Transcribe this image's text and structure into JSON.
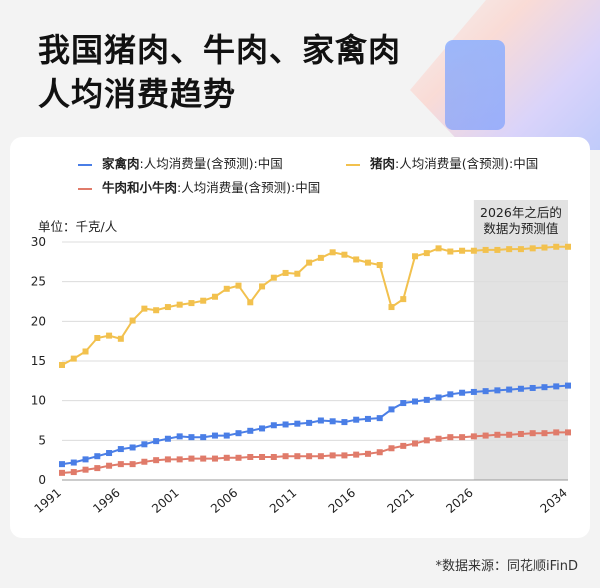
{
  "page": {
    "title_line1": "我国猪肉、牛肉、家禽肉",
    "title_line2": "人均消费趋势",
    "source": "*数据来源：同花顺iFinD"
  },
  "colors": {
    "poultry": "#4a7ee6",
    "pork": "#f2c14e",
    "beef": "#e07b6a",
    "forecast_band": "#e2e2e2"
  },
  "chart_data": {
    "type": "line",
    "unit_label": "单位：千克/人",
    "forecast_note_line1": "2026年之后的",
    "forecast_note_line2": "数据为预测值",
    "forecast_start": 2026,
    "x": [
      1991,
      1992,
      1993,
      1994,
      1995,
      1996,
      1997,
      1998,
      1999,
      2000,
      2001,
      2002,
      2003,
      2004,
      2005,
      2006,
      2007,
      2008,
      2009,
      2010,
      2011,
      2012,
      2013,
      2014,
      2015,
      2016,
      2017,
      2018,
      2019,
      2020,
      2021,
      2022,
      2023,
      2024,
      2025,
      2026,
      2027,
      2028,
      2029,
      2030,
      2031,
      2032,
      2033,
      2034
    ],
    "xticks": [
      1991,
      1996,
      2001,
      2006,
      2011,
      2016,
      2021,
      2026,
      2034
    ],
    "ylim": [
      0,
      30
    ],
    "yticks": [
      0,
      5,
      10,
      15,
      20,
      25,
      30
    ],
    "grid": "horizontal",
    "legend_position": "top",
    "series": [
      {
        "key": "poultry",
        "name_bold": "家禽肉",
        "name_rest": ":人均消费量(含预测):中国",
        "values": [
          2.0,
          2.2,
          2.6,
          3.0,
          3.4,
          3.9,
          4.1,
          4.5,
          4.9,
          5.2,
          5.5,
          5.4,
          5.4,
          5.6,
          5.6,
          5.9,
          6.2,
          6.5,
          6.9,
          7.0,
          7.1,
          7.2,
          7.5,
          7.4,
          7.3,
          7.6,
          7.7,
          7.8,
          8.9,
          9.7,
          9.9,
          10.1,
          10.4,
          10.8,
          11.0,
          11.1,
          11.2,
          11.3,
          11.4,
          11.5,
          11.6,
          11.7,
          11.8,
          11.9
        ]
      },
      {
        "key": "pork",
        "name_bold": "猪肉",
        "name_rest": ":人均消费量(含预测):中国",
        "values": [
          14.5,
          15.3,
          16.2,
          17.9,
          18.2,
          17.8,
          20.1,
          21.6,
          21.4,
          21.8,
          22.1,
          22.3,
          22.6,
          23.1,
          24.1,
          24.5,
          22.4,
          24.4,
          25.5,
          26.1,
          26.0,
          27.4,
          28.0,
          28.7,
          28.4,
          27.8,
          27.4,
          27.1,
          21.8,
          22.8,
          28.2,
          28.6,
          29.2,
          28.8,
          28.9,
          28.9,
          29.0,
          29.0,
          29.1,
          29.1,
          29.2,
          29.3,
          29.4,
          29.4
        ]
      },
      {
        "key": "beef",
        "name_bold": "牛肉和小牛肉",
        "name_rest": ":人均消费量(含预测):中国",
        "values": [
          0.9,
          1.0,
          1.3,
          1.5,
          1.8,
          2.0,
          2.0,
          2.3,
          2.5,
          2.6,
          2.6,
          2.7,
          2.7,
          2.7,
          2.8,
          2.8,
          2.9,
          2.9,
          2.9,
          3.0,
          3.0,
          3.0,
          3.0,
          3.1,
          3.1,
          3.2,
          3.3,
          3.5,
          4.0,
          4.3,
          4.6,
          5.0,
          5.2,
          5.4,
          5.4,
          5.5,
          5.6,
          5.7,
          5.7,
          5.8,
          5.9,
          5.9,
          6.0,
          6.0
        ]
      }
    ]
  }
}
